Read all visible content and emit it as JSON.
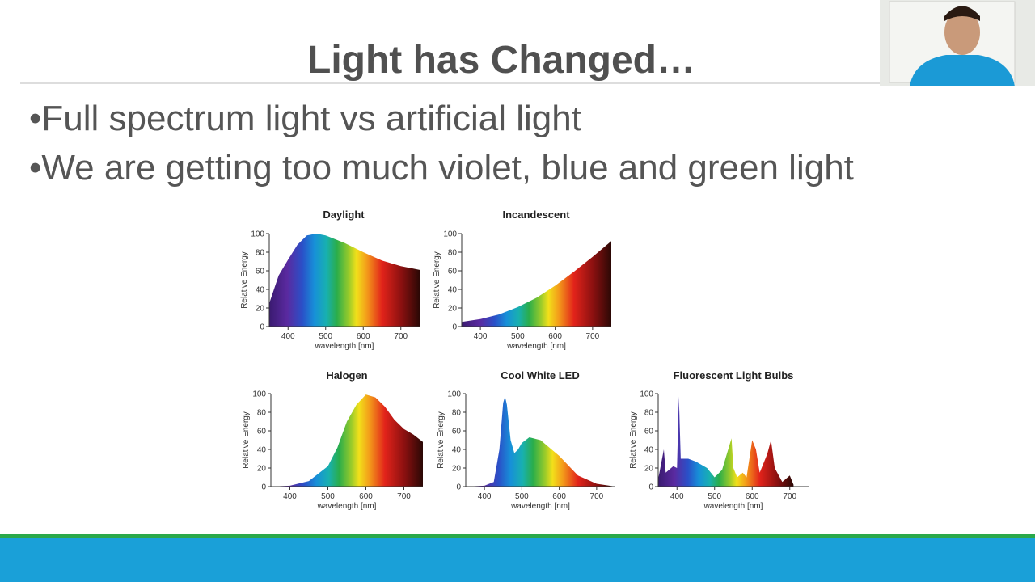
{
  "slide": {
    "title": "Light has Changed…",
    "bullets": [
      "•Full spectrum light vs artificial light",
      "•We are getting too much violet, blue and green light"
    ]
  },
  "chart_data": [
    {
      "type": "area",
      "title": "Daylight",
      "xlabel": "wavelength [nm]",
      "ylabel": "Relative Energy",
      "x": [
        350,
        375,
        400,
        425,
        450,
        475,
        500,
        550,
        600,
        650,
        700,
        750
      ],
      "values": [
        25,
        55,
        72,
        88,
        98,
        100,
        98,
        90,
        80,
        71,
        65,
        61
      ],
      "xlim": [
        350,
        750
      ],
      "ylim": [
        0,
        100
      ],
      "xticks": [
        400,
        500,
        600,
        700
      ],
      "yticks": [
        0,
        20,
        40,
        60,
        80,
        100
      ]
    },
    {
      "type": "area",
      "title": "Incandescent",
      "xlabel": "wavelength [nm]",
      "ylabel": "Relative Energy",
      "x": [
        350,
        400,
        450,
        500,
        550,
        600,
        650,
        700,
        750
      ],
      "values": [
        5,
        8,
        13,
        21,
        31,
        44,
        59,
        75,
        92
      ],
      "xlim": [
        350,
        750
      ],
      "ylim": [
        0,
        100
      ],
      "xticks": [
        400,
        500,
        600,
        700
      ],
      "yticks": [
        0,
        20,
        40,
        60,
        80,
        100
      ]
    },
    {
      "type": "area",
      "title": "Halogen",
      "xlabel": "wavelength [nm]",
      "ylabel": "Relative Energy",
      "x": [
        350,
        400,
        450,
        500,
        525,
        550,
        575,
        600,
        625,
        650,
        675,
        700,
        725,
        750
      ],
      "values": [
        0,
        1,
        6,
        22,
        42,
        70,
        88,
        99,
        96,
        86,
        72,
        62,
        56,
        48
      ],
      "xlim": [
        350,
        750
      ],
      "ylim": [
        0,
        100
      ],
      "xticks": [
        400,
        500,
        600,
        700
      ],
      "yticks": [
        0,
        20,
        40,
        60,
        80,
        100
      ]
    },
    {
      "type": "area",
      "title": "Cool White LED",
      "xlabel": "wavelength [nm]",
      "ylabel": "Relative Energy",
      "x": [
        350,
        400,
        425,
        440,
        450,
        455,
        460,
        470,
        480,
        490,
        500,
        520,
        550,
        600,
        650,
        700,
        750
      ],
      "values": [
        0,
        1,
        5,
        40,
        90,
        97,
        88,
        50,
        36,
        40,
        47,
        53,
        50,
        33,
        12,
        3,
        0
      ],
      "xlim": [
        350,
        750
      ],
      "ylim": [
        0,
        100
      ],
      "xticks": [
        400,
        500,
        600,
        700
      ],
      "yticks": [
        0,
        20,
        40,
        60,
        80,
        100
      ]
    },
    {
      "type": "area",
      "title": "Fluorescent Light Bulbs",
      "xlabel": "wavelength [nm]",
      "ylabel": "Relative Energy",
      "x": [
        350,
        365,
        370,
        390,
        400,
        405,
        410,
        430,
        450,
        480,
        500,
        520,
        545,
        550,
        560,
        575,
        585,
        600,
        610,
        620,
        640,
        650,
        660,
        680,
        700,
        710
      ],
      "values": [
        8,
        40,
        15,
        22,
        20,
        97,
        30,
        30,
        27,
        20,
        10,
        18,
        52,
        20,
        10,
        15,
        10,
        50,
        40,
        15,
        35,
        50,
        20,
        5,
        12,
        2
      ],
      "xlim": [
        350,
        750
      ],
      "ylim": [
        0,
        100
      ],
      "xticks": [
        400,
        500,
        600,
        700
      ],
      "yticks": [
        0,
        20,
        40,
        60,
        80,
        100
      ]
    }
  ]
}
